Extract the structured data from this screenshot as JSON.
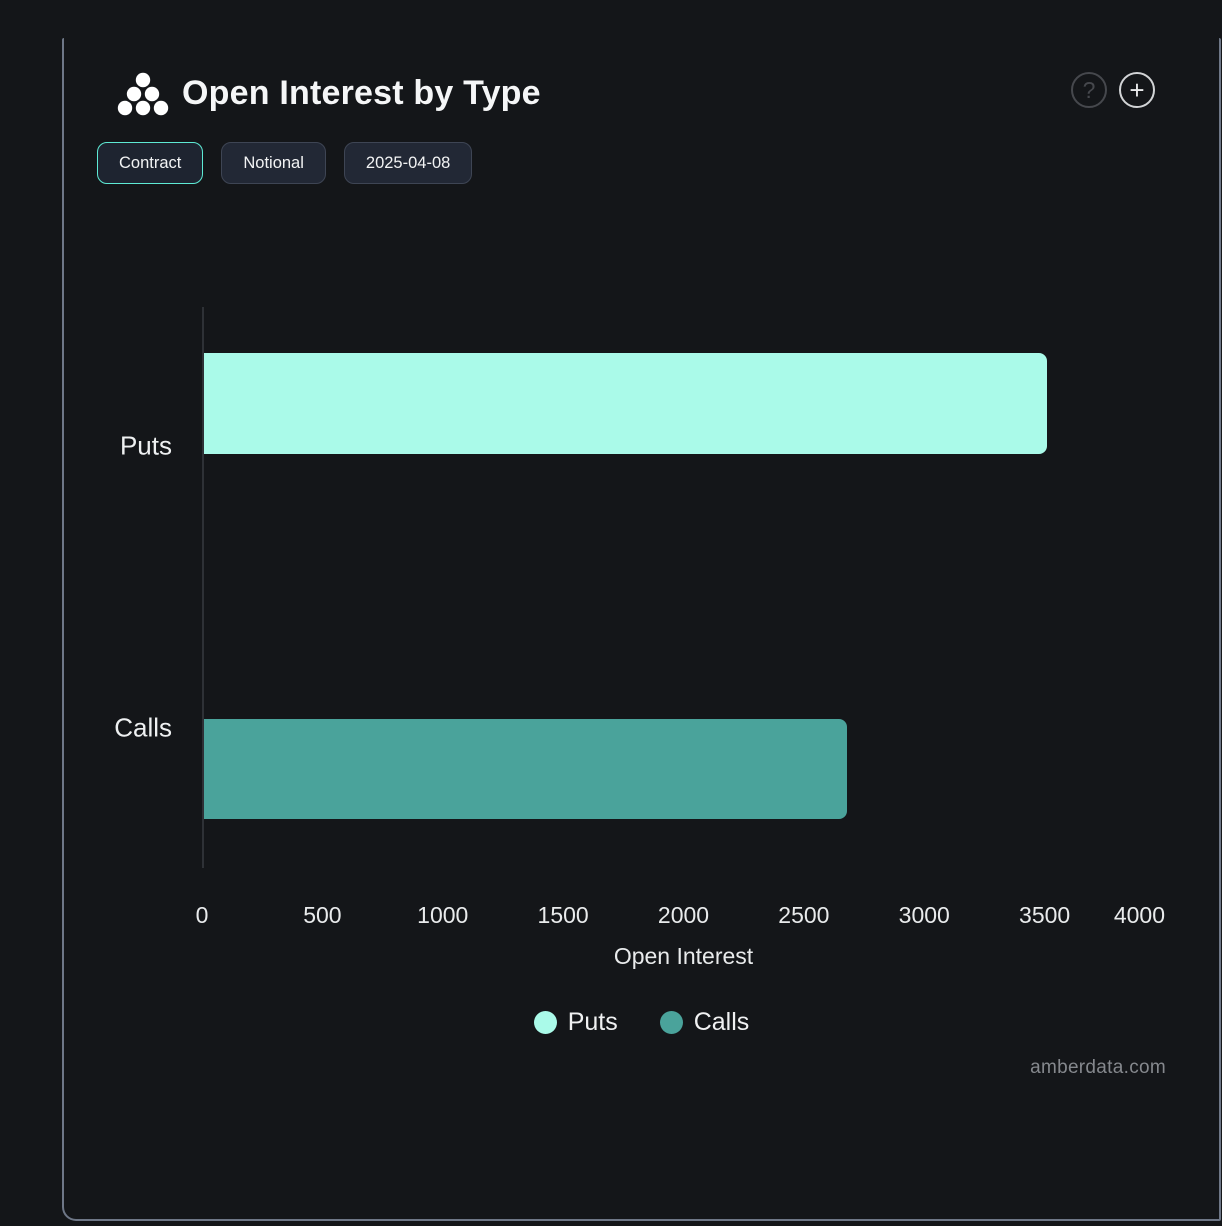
{
  "header": {
    "title": "Open Interest by Type",
    "logo_icon": "amberdata-logo-dots-icon",
    "help_label": "?",
    "add_label": "+"
  },
  "toolbar": {
    "buttons": [
      {
        "label": "Contract",
        "active": true
      },
      {
        "label": "Notional",
        "active": false
      },
      {
        "label": "2025-04-08",
        "active": false
      }
    ]
  },
  "chart_data": {
    "type": "bar",
    "orientation": "horizontal",
    "title": "Open Interest by Type",
    "categories": [
      "Puts",
      "Calls"
    ],
    "series": [
      {
        "name": "Puts",
        "value": 3500,
        "color": "#aafae9"
      },
      {
        "name": "Calls",
        "value": 2670,
        "color": "#4aa39b"
      }
    ],
    "xlabel": "Open Interest",
    "xticks": [
      0,
      500,
      1000,
      1500,
      2000,
      2500,
      3000,
      3500,
      4000
    ],
    "xlim": [
      0,
      4000
    ],
    "grid": false,
    "legend": [
      {
        "label": "Puts",
        "color": "#aafae9"
      },
      {
        "label": "Calls",
        "color": "#4aa39b"
      }
    ],
    "legend_position": "bottom"
  },
  "colors": {
    "bar_puts": "#aafae9",
    "bar_calls": "#4aa39b",
    "active_button_border": "#5eead4",
    "panel_border": "#6e7787",
    "background": "#141619"
  },
  "footer": {
    "watermark": "amberdata.com"
  }
}
